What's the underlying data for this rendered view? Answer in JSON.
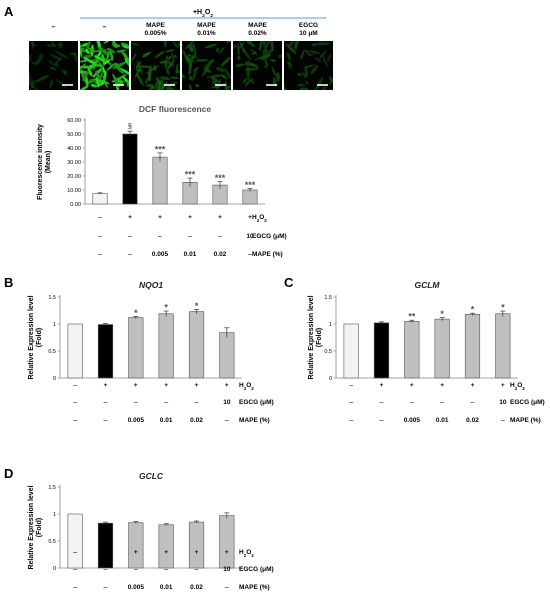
{
  "panel_a": {
    "letter": "A",
    "h2o2_header": "+H₂O₂",
    "image_labels": [
      [
        "–"
      ],
      [
        "–"
      ],
      [
        "MAPE",
        "0.005%"
      ],
      [
        "MAPE",
        "0.01%"
      ],
      [
        "MAPE",
        "0.02%"
      ],
      [
        "EGCG",
        "10 μM"
      ]
    ],
    "image_intensity": [
      0.12,
      0.95,
      0.35,
      0.28,
      0.25,
      0.2
    ]
  },
  "treatment_rows": {
    "h2o2": {
      "label": "H₂O₂",
      "values": [
        "–",
        "+",
        "+",
        "+",
        "+",
        "+"
      ]
    },
    "egcg": {
      "label": "EGCG (μM)",
      "values": [
        "–",
        "–",
        "–",
        "–",
        "–",
        "10"
      ]
    },
    "mape": {
      "label": "MAPE (%)",
      "values": [
        "–",
        "–",
        "0.005",
        "0.01",
        "0.02",
        "–"
      ]
    }
  },
  "chart_data": [
    {
      "id": "dcf",
      "type": "bar",
      "title": "DCF fluorescence",
      "title_italic": false,
      "ylabel": [
        "Fluorescence intensity",
        "(Mean)"
      ],
      "ylim": [
        0,
        60
      ],
      "yticks": [
        0,
        10,
        20,
        30,
        40,
        50,
        60
      ],
      "ytick_labels": [
        "0.00",
        "10.00",
        "20.00",
        "30.00",
        "40.00",
        "50.00",
        "60.00"
      ],
      "values": [
        7.5,
        50,
        33.5,
        15.5,
        13.5,
        10
      ],
      "errors": [
        0.5,
        2,
        3,
        3,
        2.5,
        1
      ],
      "bar_colors": [
        "#f3f3f3",
        "#000000",
        "#bfbfbf",
        "#bfbfbf",
        "#bfbfbf",
        "#bfbfbf"
      ],
      "significance": [
        "",
        "§",
        "***",
        "***",
        "***",
        "***"
      ]
    },
    {
      "id": "nqo1",
      "letter": "B",
      "type": "bar",
      "title": "NQO1",
      "title_italic": true,
      "ylabel": [
        "Relative Expression level",
        "(Fold)"
      ],
      "ylim": [
        0,
        1.5
      ],
      "yticks": [
        0,
        0.5,
        1,
        1.5
      ],
      "ytick_labels": [
        "0",
        "0.5",
        "1",
        "1.5"
      ],
      "values": [
        1.0,
        0.99,
        1.12,
        1.19,
        1.23,
        0.84
      ],
      "errors": [
        0,
        0.02,
        0.02,
        0.05,
        0.04,
        0.09
      ],
      "bar_colors": [
        "#f3f3f3",
        "#000000",
        "#bfbfbf",
        "#bfbfbf",
        "#bfbfbf",
        "#bfbfbf"
      ],
      "significance": [
        "",
        "",
        "*",
        "*",
        "*",
        ""
      ]
    },
    {
      "id": "gclm",
      "letter": "C",
      "type": "bar",
      "title": "GCLM",
      "title_italic": true,
      "ylabel": [
        "Relative Expression level",
        "(Fold)"
      ],
      "ylim": [
        0,
        1.5
      ],
      "yticks": [
        0,
        0.5,
        1,
        1.5
      ],
      "ytick_labels": [
        "0",
        "0.5",
        "1",
        "1.5"
      ],
      "values": [
        1.0,
        1.02,
        1.05,
        1.09,
        1.18,
        1.19
      ],
      "errors": [
        0,
        0.02,
        0.02,
        0.03,
        0.02,
        0.05
      ],
      "bar_colors": [
        "#f3f3f3",
        "#000000",
        "#bfbfbf",
        "#bfbfbf",
        "#bfbfbf",
        "#bfbfbf"
      ],
      "significance": [
        "",
        "",
        "**",
        "*",
        "*",
        "*"
      ]
    },
    {
      "id": "gclc",
      "letter": "D",
      "type": "bar",
      "title": "GCLC",
      "title_italic": true,
      "ylabel": [
        "Relative Expression level",
        "(Fold)"
      ],
      "ylim": [
        0,
        1.5
      ],
      "yticks": [
        0,
        0.5,
        1,
        1.5
      ],
      "ytick_labels": [
        "0",
        "0.5",
        "1",
        "1.5"
      ],
      "values": [
        1.0,
        0.83,
        0.84,
        0.8,
        0.85,
        0.97
      ],
      "errors": [
        0,
        0.02,
        0.02,
        0.02,
        0.02,
        0.05
      ],
      "bar_colors": [
        "#f3f3f3",
        "#000000",
        "#bfbfbf",
        "#bfbfbf",
        "#bfbfbf",
        "#bfbfbf"
      ],
      "significance": [
        "",
        "",
        "",
        "",
        "",
        ""
      ]
    }
  ]
}
